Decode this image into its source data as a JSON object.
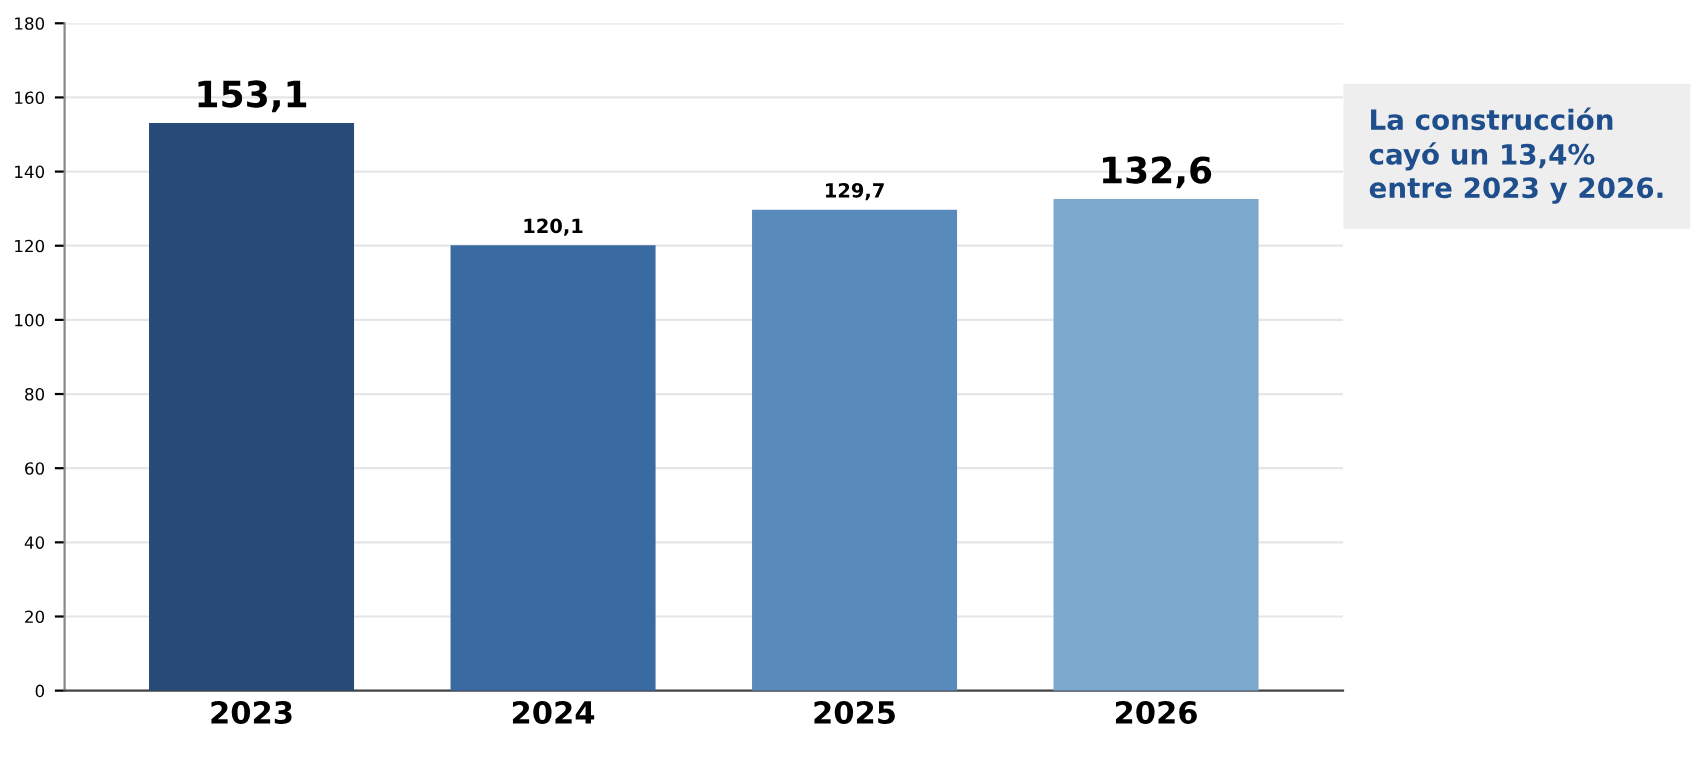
{
  "chart_data": {
    "type": "bar",
    "categories": [
      "2023",
      "2024",
      "2025",
      "2026"
    ],
    "values": [
      153.1,
      120.1,
      129.7,
      132.6
    ],
    "colors": [
      "#284a78",
      "#3a6aa2",
      "#588abb",
      "#7ba8cd"
    ],
    "value_labels": [
      "153,1",
      "120,1",
      "129,7",
      "132,6"
    ],
    "ylim": [
      0,
      180
    ],
    "yticks": [
      0,
      20,
      40,
      60,
      80,
      100,
      120,
      140,
      160,
      180
    ],
    "grid": "y",
    "annotations": [
      "La construcción\ncayó un 13,4%\nentre 2023 y 2026."
    ]
  }
}
